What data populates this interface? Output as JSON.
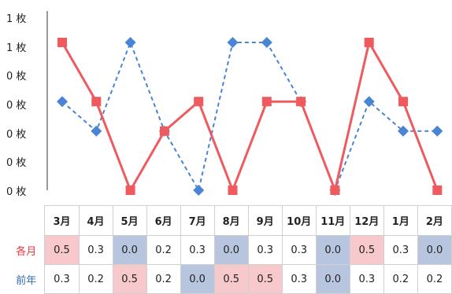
{
  "chart_data": {
    "type": "line",
    "categories": [
      "3月",
      "4月",
      "5月",
      "6月",
      "7月",
      "8月",
      "9月",
      "10月",
      "11月",
      "12月",
      "1月",
      "2月"
    ],
    "y_tick_labels": [
      "1 枚",
      "1 枚",
      "0 枚",
      "0 枚",
      "0 枚",
      "0 枚",
      "0 枚"
    ],
    "ylim": [
      0,
      0.6
    ],
    "grid": false,
    "series": [
      {
        "name": "各月",
        "color": "#ef5a5f",
        "line_style": "solid",
        "marker": "square",
        "values": [
          0.5,
          0.3,
          0.0,
          0.2,
          0.3,
          0.0,
          0.3,
          0.3,
          0.0,
          0.5,
          0.3,
          0.0
        ]
      },
      {
        "name": "前年",
        "color": "#4a84d4",
        "line_style": "dashed",
        "marker": "diamond",
        "values": [
          0.3,
          0.2,
          0.5,
          0.2,
          0.0,
          0.5,
          0.5,
          0.3,
          0.0,
          0.3,
          0.2,
          0.2
        ]
      }
    ]
  },
  "table": {
    "headers": [
      "3月",
      "4月",
      "5月",
      "6月",
      "7月",
      "8月",
      "9月",
      "10月",
      "11月",
      "12月",
      "1月",
      "2月"
    ],
    "rows": [
      {
        "label": "各月",
        "cells": [
          "0.5",
          "0.3",
          "0.0",
          "0.2",
          "0.3",
          "0.0",
          "0.3",
          "0.3",
          "0.0",
          "0.5",
          "0.3",
          "0.0"
        ],
        "highlight": [
          "hi",
          "",
          "lo",
          "",
          "",
          "lo",
          "",
          "",
          "lo",
          "hi",
          "",
          "lo"
        ]
      },
      {
        "label": "前年",
        "cells": [
          "0.3",
          "0.2",
          "0.5",
          "0.2",
          "0.0",
          "0.5",
          "0.5",
          "0.3",
          "0.0",
          "0.3",
          "0.2",
          "0.2"
        ],
        "highlight": [
          "",
          "",
          "hi",
          "",
          "lo",
          "hi",
          "hi",
          "",
          "lo",
          "",
          "",
          ""
        ]
      }
    ]
  }
}
